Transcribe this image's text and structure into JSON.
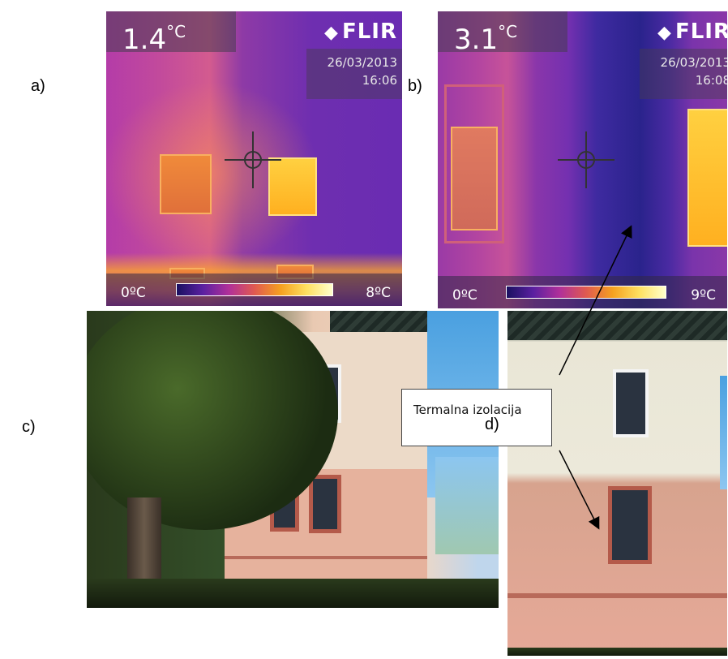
{
  "panels": {
    "a": {
      "label": "a)",
      "temperature": "1.4",
      "unit": "°C",
      "brand": "FLIR",
      "date": "26/03/2013",
      "time": "16:06",
      "scale_min": "0ºC",
      "scale_max": "8ºC"
    },
    "b": {
      "label": "b)",
      "temperature": "3.1",
      "unit": "°C",
      "brand": "FLIR",
      "date": "26/03/2013",
      "time": "16:08",
      "scale_min": "0ºC",
      "scale_max": "9ºC"
    },
    "c": {
      "label": "c)"
    },
    "d": {
      "label": "d)"
    }
  },
  "callout": {
    "text": "Termalna izolacija"
  },
  "colors": {
    "thermal_hot": "#ffd040",
    "thermal_cold": "#2a238c",
    "facade_upper": "#ecdac8",
    "facade_lower": "#e6b29d"
  },
  "icons": [
    "flir-logo-icon",
    "crosshair-icon",
    "arrow-icon"
  ]
}
